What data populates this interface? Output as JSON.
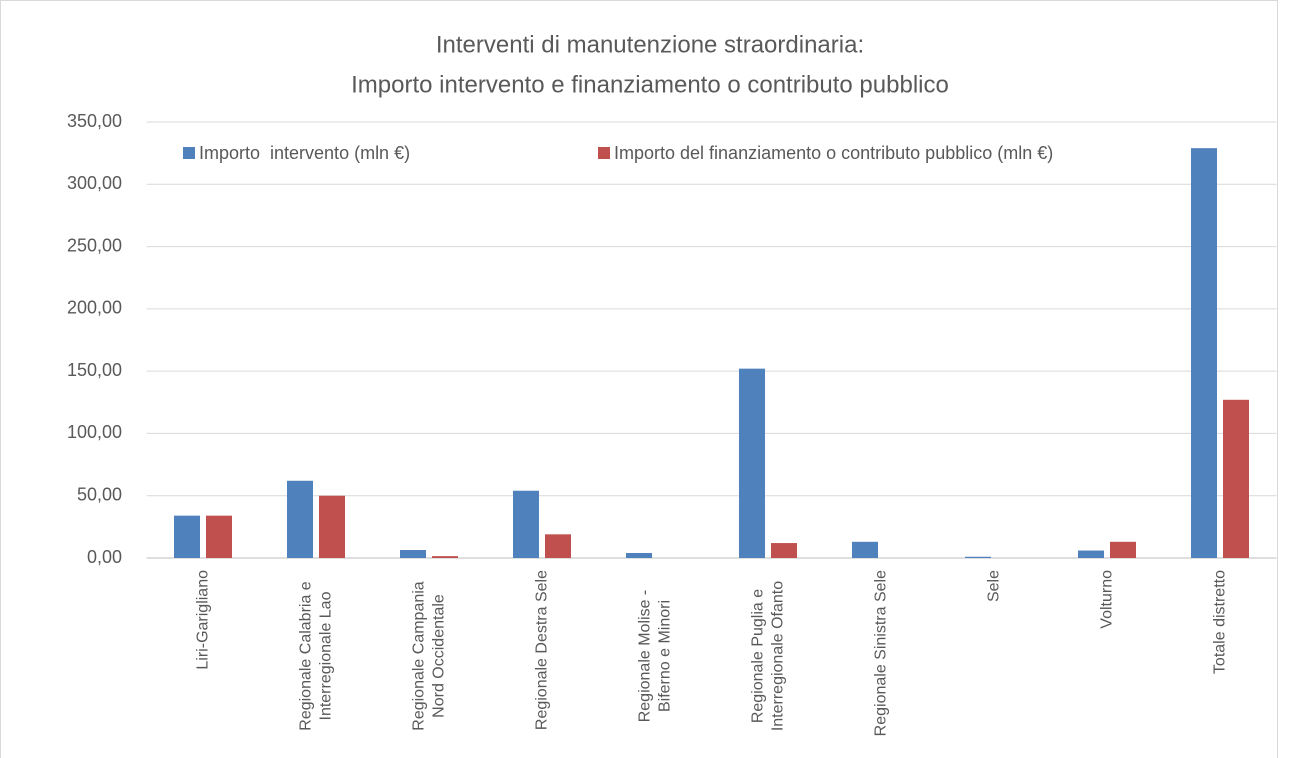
{
  "chart_data": {
    "type": "bar",
    "title": [
      "Interventi di manutenzione straordinaria:",
      "Importo intervento e finanziamento o contributo pubblico"
    ],
    "categories": [
      "Liri-Garigliano",
      "Regionale Calabria e Interregionale Lao",
      "Regionale Campania Nord Occidentale",
      "Regionale Destra Sele",
      "Regionale Molise - Biferno e Minori",
      "Regionale Puglia e Interregionale Ofanto",
      "Regionale Sinistra Sele",
      "Sele",
      "Volturno",
      "Totale distretto"
    ],
    "series": [
      {
        "name": "Importo  intervento (mln €)",
        "color": "#4f81bd",
        "values": [
          34,
          62,
          6.4,
          54,
          4,
          152,
          13,
          1,
          6,
          329
        ]
      },
      {
        "name": "Importo del finanziamento o contributo pubblico (mln €)",
        "color": "#c0504d",
        "values": [
          34,
          50,
          1.5,
          19,
          0,
          12,
          0,
          0,
          13,
          127
        ]
      }
    ],
    "ylim": [
      0,
      350
    ],
    "yticks": [
      {
        "value": 0,
        "label": "0,00"
      },
      {
        "value": 50,
        "label": "50,00"
      },
      {
        "value": 100,
        "label": "100,00"
      },
      {
        "value": 150,
        "label": "150,00"
      },
      {
        "value": 200,
        "label": "200,00"
      },
      {
        "value": 250,
        "label": "250,00"
      },
      {
        "value": 300,
        "label": "300,00"
      },
      {
        "value": 350,
        "label": "350,00"
      }
    ],
    "grid": true,
    "legend": "top"
  }
}
